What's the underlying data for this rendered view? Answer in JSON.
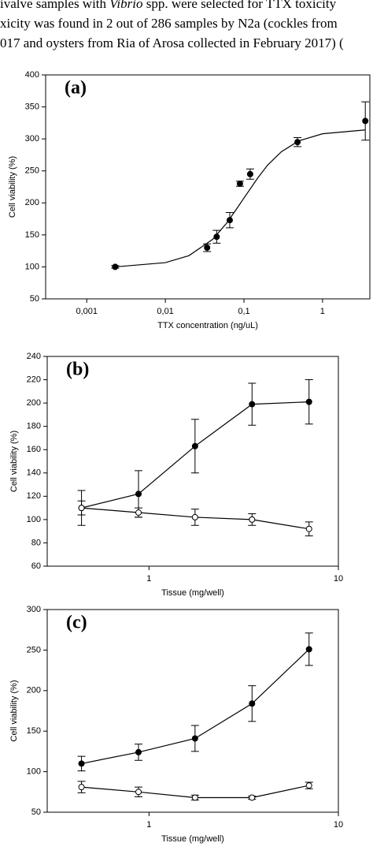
{
  "text_lines": [
    [
      "ivalve samples with ",
      "Vibrio",
      " spp. were selected for TTX toxicity"
    ],
    [
      "xicity was found in 2 out of 286 samples by N2a (cockles from"
    ],
    [
      "017 and oysters from Ria of Arosa collected in February 2017) ("
    ]
  ],
  "chart_data": [
    {
      "type": "scatter",
      "panel_label": "(a)",
      "xlabel": "TTX concentration (ng/uL)",
      "ylabel": "Cell viability (%)",
      "xscale": "log",
      "xlim": [
        0.0003,
        4
      ],
      "ylim": [
        50,
        400
      ],
      "xticks": [
        {
          "value": 0.001,
          "label": "0,001"
        },
        {
          "value": 0.01,
          "label": "0,01"
        },
        {
          "value": 0.1,
          "label": "0,1"
        },
        1
      ],
      "yticks": [
        50,
        100,
        150,
        200,
        250,
        300,
        350,
        400
      ],
      "series": [
        {
          "marker": "filled",
          "line": false,
          "color": "#000000",
          "x": [
            0.0023,
            0.034,
            0.045,
            0.066,
            0.089,
            0.12,
            0.48,
            3.5
          ],
          "values": [
            100,
            130,
            147,
            173,
            230,
            245,
            295,
            328
          ],
          "errors": [
            2,
            6,
            10,
            12,
            4,
            8,
            7,
            30
          ]
        },
        {
          "marker": "none",
          "line": true,
          "color": "#000000",
          "x": [
            0.0023,
            0.01,
            0.02,
            0.04,
            0.06,
            0.08,
            0.1,
            0.15,
            0.2,
            0.3,
            0.5,
            1,
            3.5
          ],
          "values": [
            100,
            106.6,
            117.6,
            143,
            168,
            190,
            207.5,
            239,
            259,
            280,
            297,
            308,
            314
          ]
        }
      ]
    },
    {
      "type": "scatter",
      "panel_label": "(b)",
      "xlabel": "Tissue (mg/well)",
      "ylabel": "Cell viability (%)",
      "xscale": "log",
      "xlim": [
        0.29,
        10
      ],
      "ylim": [
        60,
        240
      ],
      "xticks": [
        1,
        10
      ],
      "yticks": [
        60,
        80,
        100,
        120,
        140,
        160,
        180,
        200,
        220,
        240
      ],
      "series": [
        {
          "marker": "filled",
          "line": true,
          "color": "#000000",
          "x": [
            0.44,
            0.88,
            1.75,
            3.5,
            7
          ],
          "values": [
            110,
            122,
            163,
            199,
            201
          ],
          "errors": [
            15,
            20,
            23,
            18,
            19
          ]
        },
        {
          "marker": "open",
          "line": true,
          "color": "#000000",
          "x": [
            0.44,
            0.88,
            1.75,
            3.5,
            7
          ],
          "values": [
            110,
            106,
            102,
            100,
            92
          ],
          "errors": [
            6,
            4,
            7,
            5,
            6
          ]
        }
      ]
    },
    {
      "type": "scatter",
      "panel_label": "(c)",
      "xlabel": "Tissue (mg/well)",
      "ylabel": "Cell viability (%)",
      "xscale": "log",
      "xlim": [
        0.29,
        10
      ],
      "ylim": [
        50,
        300
      ],
      "xticks": [
        1,
        10
      ],
      "yticks": [
        50,
        100,
        150,
        200,
        250,
        300
      ],
      "series": [
        {
          "marker": "filled",
          "line": true,
          "color": "#000000",
          "x": [
            0.44,
            0.88,
            1.75,
            3.5,
            7
          ],
          "values": [
            110,
            124,
            141,
            184,
            251
          ],
          "errors": [
            9,
            10,
            16,
            22,
            20
          ]
        },
        {
          "marker": "open",
          "line": true,
          "color": "#000000",
          "x": [
            0.44,
            0.88,
            1.75,
            3.5,
            7
          ],
          "values": [
            81,
            75,
            68,
            68,
            83
          ],
          "errors": [
            7,
            6,
            3,
            2,
            4
          ]
        }
      ]
    }
  ]
}
